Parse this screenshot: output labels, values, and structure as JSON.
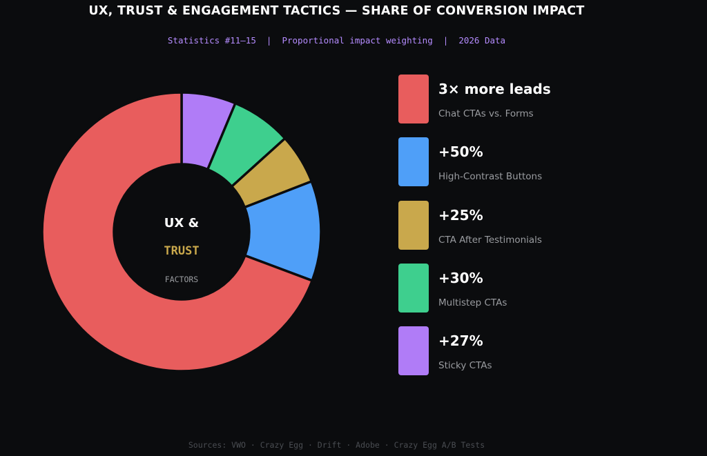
{
  "title": "UX, TRUST & ENGAGEMENT TACTICS — SHARE OF CONVERSION IMPACT",
  "subtitle": "Statistics #11–15  |  Proportional impact weighting  |  2026 Data",
  "footer": "Sources: VWO · Crazy Egg · Drift · Adobe · Crazy Egg A/B Tests",
  "center": {
    "line1": "UX &",
    "line2": "TRUST",
    "line3": "FACTORS",
    "line1_color": "#ffffff",
    "line2_color": "#c9a84c",
    "line3_color": "#9a9ca0"
  },
  "chart_data": {
    "type": "pie",
    "donut": true,
    "start": "top",
    "direction": "clockwise",
    "title": "UX, TRUST & ENGAGEMENT TACTICS — SHARE OF CONVERSION IMPACT",
    "legend_position": "right",
    "slices": [
      {
        "label": "Sticky CTAs",
        "display": "+27%",
        "share_percent": 6.3,
        "color": "#b07cf7"
      },
      {
        "label": "Multistep CTAs",
        "display": "+30%",
        "share_percent": 7.0,
        "color": "#3ecf8e"
      },
      {
        "label": "CTA After Testimonials",
        "display": "+25%",
        "share_percent": 5.8,
        "color": "#c9a84c"
      },
      {
        "label": "High-Contrast Buttons",
        "display": "+50%",
        "share_percent": 11.6,
        "color": "#4f9ff8"
      },
      {
        "label": "Chat CTAs vs. Forms",
        "display": "3× more leads",
        "share_percent": 69.3,
        "color": "#e85d5d"
      }
    ]
  },
  "legend": [
    {
      "value": "3× more leads",
      "label": "Chat CTAs vs. Forms",
      "color": "#e85d5d"
    },
    {
      "value": "+50%",
      "label": "High-Contrast Buttons",
      "color": "#4f9ff8"
    },
    {
      "value": "+25%",
      "label": "CTA After Testimonials",
      "color": "#c9a84c"
    },
    {
      "value": "+30%",
      "label": "Multistep CTAs",
      "color": "#3ecf8e"
    },
    {
      "value": "+27%",
      "label": "Sticky CTAs",
      "color": "#b07cf7"
    }
  ]
}
